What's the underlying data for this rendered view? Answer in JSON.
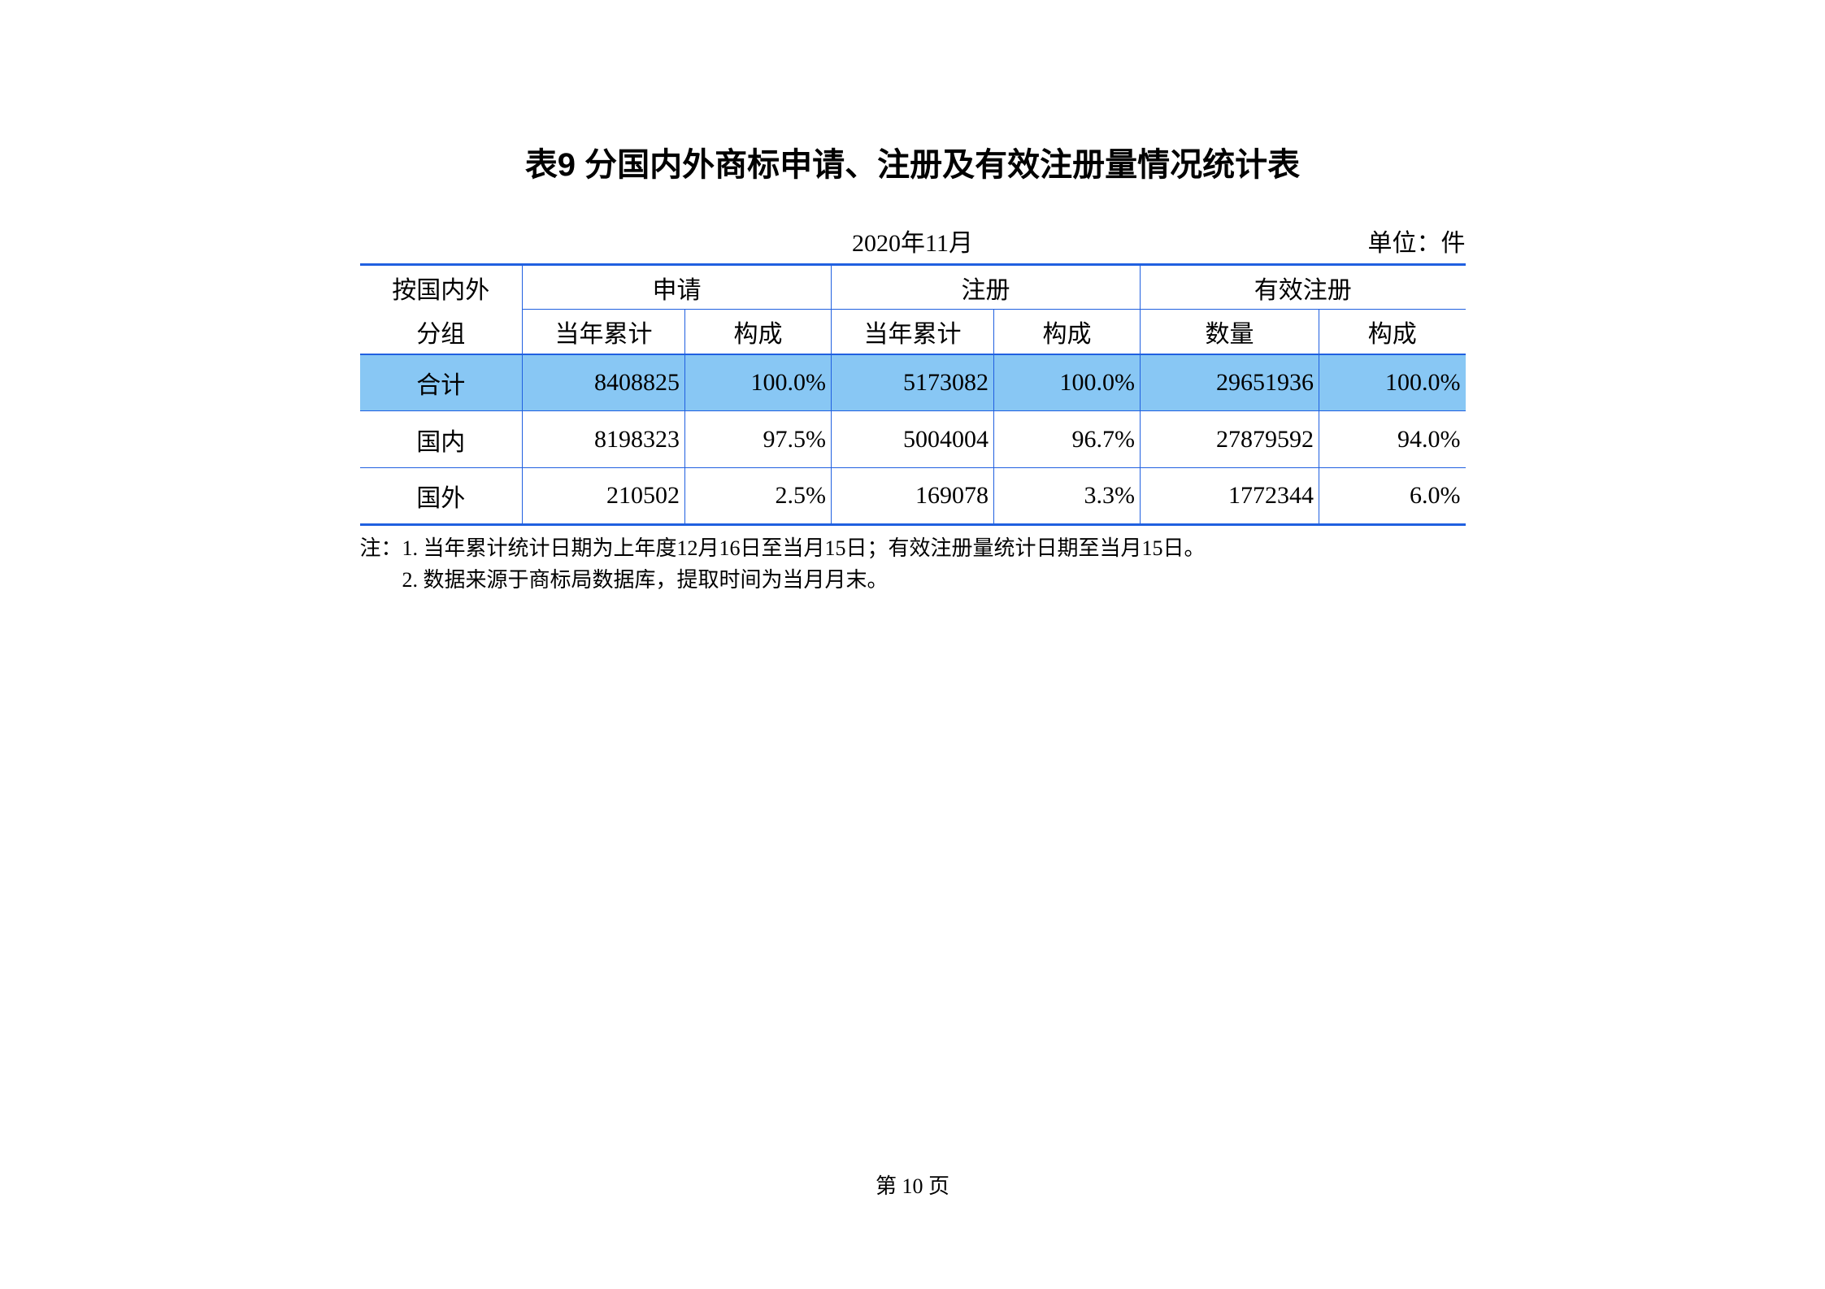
{
  "title": "表9 分国内外商标申请、注册及有效注册量情况统计表",
  "date": "2020年11月",
  "unit": "单位：件",
  "table": {
    "row_group_header_top": "按国内外",
    "row_group_header_bottom": "分组",
    "col_groups": [
      {
        "label": "申请",
        "sub": [
          "当年累计",
          "构成"
        ]
      },
      {
        "label": "注册",
        "sub": [
          "当年累计",
          "构成"
        ]
      },
      {
        "label": "有效注册",
        "sub": [
          "数量",
          "构成"
        ]
      }
    ],
    "rows": [
      {
        "label": "合计",
        "cells": [
          "8408825",
          "100.0%",
          "5173082",
          "100.0%",
          "29651936",
          "100.0%"
        ],
        "highlight": true
      },
      {
        "label": "国内",
        "cells": [
          "8198323",
          "97.5%",
          "5004004",
          "96.7%",
          "27879592",
          "94.0%"
        ],
        "highlight": false
      },
      {
        "label": "国外",
        "cells": [
          "210502",
          "2.5%",
          "169078",
          "3.3%",
          "1772344",
          "6.0%"
        ],
        "highlight": false
      }
    ]
  },
  "notes": {
    "prefix": "注：",
    "lines": [
      "1. 当年累计统计日期为上年度12月16日至当月15日；有效注册量统计日期至当月15日。",
      "2. 数据来源于商标局数据库，提取时间为当月月末。"
    ]
  },
  "page_footer": "第 10 页",
  "colors": {
    "border": "#2060e0",
    "highlight_bg": "#88c7f4",
    "background": "#ffffff",
    "text": "#000000"
  },
  "typography": {
    "title_fontsize": 40,
    "body_fontsize": 30,
    "notes_fontsize": 26
  }
}
